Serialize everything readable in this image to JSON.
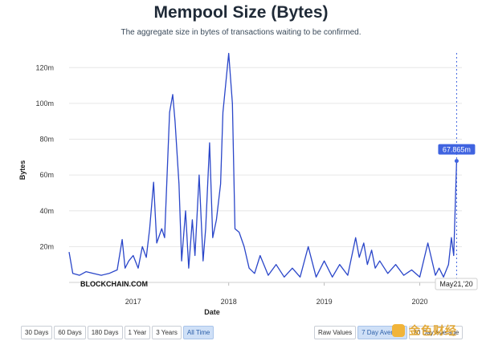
{
  "header": {
    "title": "Mempool Size (Bytes)",
    "subtitle": "The aggregate size in bytes of transactions waiting to be confirmed."
  },
  "watermark": "BLOCKCHAIN.COM",
  "end_date_label": "May21,'20",
  "tooltip_value": "67.865m",
  "colors": {
    "line": "#2a46c9",
    "tooltip_bg": "#3f63e0",
    "grid": "#e6e6e6",
    "active_btn": "#cfe0f7"
  },
  "range_buttons": [
    {
      "label": "30 Days",
      "active": false
    },
    {
      "label": "60 Days",
      "active": false
    },
    {
      "label": "180 Days",
      "active": false
    },
    {
      "label": "1 Year",
      "active": false
    },
    {
      "label": "3 Years",
      "active": false
    },
    {
      "label": "All Time",
      "active": true
    }
  ],
  "mode_buttons": [
    {
      "label": "Raw Values",
      "active": false
    },
    {
      "label": "7 Day Average",
      "active": true
    },
    {
      "label": "30 Day Average",
      "active": false
    }
  ],
  "logo_text": "金色财经",
  "chart_data": {
    "type": "line",
    "title": "Mempool Size (Bytes)",
    "xlabel": "Date",
    "ylabel": "Bytes",
    "x_ticks": [
      "2017",
      "2018",
      "2019",
      "2020"
    ],
    "y_ticks": [
      "20m",
      "40m",
      "60m",
      "80m",
      "100m",
      "120m"
    ],
    "ylim": [
      0,
      130000000
    ],
    "xlim": [
      "2016-05-01",
      "2020-06-01"
    ],
    "grid": true,
    "series": [
      {
        "name": "",
        "x": [
          "2016-05-01",
          "2016-05-15",
          "2016-06-10",
          "2016-07-05",
          "2016-08-01",
          "2016-09-01",
          "2016-10-01",
          "2016-11-01",
          "2016-11-20",
          "2016-12-01",
          "2016-12-15",
          "2017-01-01",
          "2017-01-20",
          "2017-02-05",
          "2017-02-20",
          "2017-03-05",
          "2017-03-20",
          "2017-04-01",
          "2017-04-20",
          "2017-05-01",
          "2017-05-20",
          "2017-06-01",
          "2017-06-10",
          "2017-06-25",
          "2017-07-05",
          "2017-07-20",
          "2017-08-01",
          "2017-08-15",
          "2017-08-25",
          "2017-09-10",
          "2017-09-25",
          "2017-10-05",
          "2017-10-20",
          "2017-11-01",
          "2017-11-15",
          "2017-12-01",
          "2017-12-10",
          "2017-12-20",
          "2018-01-01",
          "2018-01-15",
          "2018-01-25",
          "2018-02-10",
          "2018-03-01",
          "2018-03-20",
          "2018-04-10",
          "2018-05-01",
          "2018-06-01",
          "2018-07-01",
          "2018-08-01",
          "2018-09-01",
          "2018-10-01",
          "2018-11-01",
          "2018-12-01",
          "2019-01-01",
          "2019-02-01",
          "2019-03-01",
          "2019-04-01",
          "2019-05-01",
          "2019-05-15",
          "2019-06-01",
          "2019-06-15",
          "2019-07-01",
          "2019-07-15",
          "2019-08-01",
          "2019-09-01",
          "2019-10-01",
          "2019-11-01",
          "2019-12-01",
          "2020-01-01",
          "2020-02-01",
          "2020-03-01",
          "2020-03-15",
          "2020-04-01",
          "2020-04-20",
          "2020-05-01",
          "2020-05-10",
          "2020-05-21"
        ],
        "values": [
          17000000,
          5000000,
          4000000,
          6000000,
          5000000,
          4000000,
          5000000,
          7000000,
          24000000,
          8000000,
          12000000,
          15000000,
          8000000,
          20000000,
          14000000,
          30000000,
          56000000,
          22000000,
          30000000,
          25000000,
          95000000,
          105000000,
          90000000,
          55000000,
          12000000,
          40000000,
          8000000,
          35000000,
          15000000,
          60000000,
          12000000,
          30000000,
          78000000,
          25000000,
          35000000,
          55000000,
          95000000,
          110000000,
          128000000,
          100000000,
          30000000,
          28000000,
          20000000,
          8000000,
          5000000,
          15000000,
          4000000,
          10000000,
          3000000,
          8000000,
          3000000,
          20000000,
          3000000,
          12000000,
          3000000,
          10000000,
          4000000,
          25000000,
          14000000,
          22000000,
          10000000,
          18000000,
          8000000,
          12000000,
          5000000,
          10000000,
          4000000,
          7000000,
          3000000,
          22000000,
          4000000,
          8000000,
          3000000,
          10000000,
          25000000,
          15000000,
          67865000
        ]
      }
    ]
  }
}
